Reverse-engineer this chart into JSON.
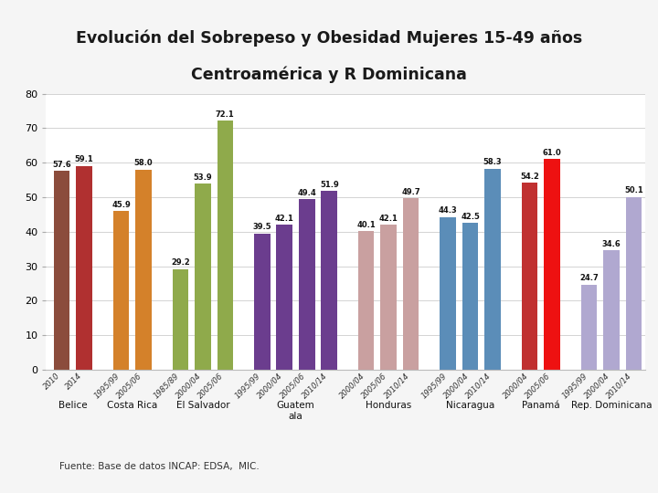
{
  "title_line1": "Evolución del Sobrepeso y Obesidad Mujeres 15-49 años",
  "title_line2": "Centroamérica y R Dominicana",
  "title_bg_color": "#8faa4b",
  "title_text_color": "#1a1a1a",
  "footer": "Fuente: Base de datos INCAP: EDSA,  MIC.",
  "ylim": [
    0,
    80
  ],
  "yticks": [
    0,
    10,
    20,
    30,
    40,
    50,
    60,
    70,
    80
  ],
  "bars": [
    {
      "label": "2010",
      "group": "Belice",
      "value": 57.6,
      "color": "#8b4c3c"
    },
    {
      "label": "2014",
      "group": "Belice",
      "value": 59.1,
      "color": "#b03030"
    },
    {
      "label": "1995/99",
      "group": "Costa Rica",
      "value": 45.9,
      "color": "#d4812a"
    },
    {
      "label": "2005/06",
      "group": "Costa Rica",
      "value": 58.0,
      "color": "#d4812a"
    },
    {
      "label": "1985/89",
      "group": "El Salvador",
      "value": 29.2,
      "color": "#8faa4b"
    },
    {
      "label": "2000/04",
      "group": "El Salvador",
      "value": 53.9,
      "color": "#8faa4b"
    },
    {
      "label": "2005/06",
      "group": "El Salvador",
      "value": 72.1,
      "color": "#8faa4b"
    },
    {
      "label": "1995/99",
      "group": "Guatemala",
      "value": 39.5,
      "color": "#6b3d8e"
    },
    {
      "label": "2000/04",
      "group": "Guatemala",
      "value": 42.1,
      "color": "#6b3d8e"
    },
    {
      "label": "2005/06",
      "group": "Guatemala",
      "value": 49.4,
      "color": "#6b3d8e"
    },
    {
      "label": "2010/14",
      "group": "Guatemala",
      "value": 51.9,
      "color": "#6b3d8e"
    },
    {
      "label": "2000/04",
      "group": "Honduras",
      "value": 40.1,
      "color": "#c9a0a0"
    },
    {
      "label": "2005/06",
      "group": "Honduras",
      "value": 42.1,
      "color": "#c9a0a0"
    },
    {
      "label": "2010/14",
      "group": "Honduras",
      "value": 49.7,
      "color": "#c9a0a0"
    },
    {
      "label": "1995/99",
      "group": "Nicaragua",
      "value": 44.3,
      "color": "#5b8db8"
    },
    {
      "label": "2000/04",
      "group": "Nicaragua",
      "value": 42.5,
      "color": "#5b8db8"
    },
    {
      "label": "2010/14",
      "group": "Nicaragua",
      "value": 58.3,
      "color": "#5b8db8"
    },
    {
      "label": "2000/04",
      "group": "Panamá",
      "value": 54.2,
      "color": "#c03030"
    },
    {
      "label": "2005/06",
      "group": "Panamá",
      "value": 61.0,
      "color": "#ee1111"
    },
    {
      "label": "1995/99",
      "group": "Rep. Dominicana",
      "value": 24.7,
      "color": "#b0a8d0"
    },
    {
      "label": "2000/04",
      "group": "Rep. Dominicana",
      "value": 34.6,
      "color": "#b0a8d0"
    },
    {
      "label": "2010/14",
      "group": "Rep. Dominicana",
      "value": 50.1,
      "color": "#b0a8d0"
    }
  ],
  "group_order": [
    "Belice",
    "Costa Rica",
    "El Salvador",
    "Guatemala",
    "Honduras",
    "Nicaragua",
    "Panamá",
    "Rep. Dominicana"
  ],
  "group_labels": {
    "Belice": "Belice",
    "Costa Rica": "Costa Rica",
    "El Salvador": "El Salvador",
    "Guatemala": "Guatem\nala",
    "Honduras": "Honduras",
    "Nicaragua": "Nicaragua",
    "Panamá": "Panamá",
    "Rep. Dominicana": "Rep. Dominicana"
  },
  "chart_bg": "#f5f5f5",
  "plot_bg": "#ffffff"
}
